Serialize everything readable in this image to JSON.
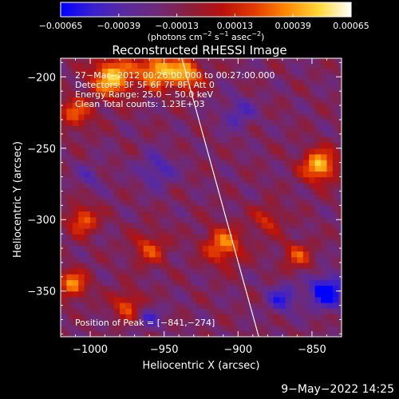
{
  "chart_data": {
    "type": "heatmap",
    "title": "Reconstructed RHESSI Image",
    "xlabel": "Heliocentric X (arcsec)",
    "ylabel": "Heliocentric Y (arcsec)",
    "xlim": [
      -1020,
      -830
    ],
    "ylim": [
      -382,
      -187
    ],
    "x_ticks": [
      {
        "value": -1000,
        "label": "−1000"
      },
      {
        "value": -950,
        "label": "−950"
      },
      {
        "value": -900,
        "label": "−900"
      },
      {
        "value": -850,
        "label": "−850"
      }
    ],
    "y_ticks": [
      {
        "value": -200,
        "label": "−200"
      },
      {
        "value": -250,
        "label": "−250"
      },
      {
        "value": -300,
        "label": "−300"
      },
      {
        "value": -350,
        "label": "−350"
      }
    ],
    "colorbar": {
      "min": -0.00065,
      "max": 0.00065,
      "tick_values": [
        -0.00065,
        -0.00039,
        -0.00013,
        0.00013,
        0.00039,
        0.00065
      ],
      "tick_labels": [
        "−0.00065",
        "−0.00039",
        "−0.00013",
        "0.00013",
        "0.00039",
        "0.00065"
      ],
      "label_main": "(photons cm",
      "label_exp1": "−2",
      "label_mid1": " s",
      "label_exp2": "−1",
      "label_mid2": " asec",
      "label_exp3": "−2",
      "label_end": ")",
      "colors": [
        "#0000ff",
        "#3a1fd0",
        "#5a2a9c",
        "#6e2a78",
        "#8a1f3c",
        "#b8100c",
        "#e23a00",
        "#ff8a00",
        "#ffd83a",
        "#ffffff"
      ]
    },
    "info_lines": [
      "27−Mar−2012 00:26:00.000 to 00:27:00.000",
      "Detectors: 3F 5F 6F 7F 8F, Att 0",
      "Energy Range: 25.0 − 50.0 keV",
      "Clean     Total counts: 1.23E+03"
    ],
    "peak_label": "Position of Peak = [−841,−274]",
    "limb_line": [
      [
        -938,
        -187
      ],
      [
        -886,
        -382
      ]
    ],
    "hotspots": [
      {
        "x": -985,
        "y": -200,
        "amp": 0.00065,
        "sigma": 10
      },
      {
        "x": -955,
        "y": -195,
        "amp": 0.0006,
        "sigma": 9
      },
      {
        "x": -935,
        "y": -198,
        "amp": 0.00055,
        "sigma": 8
      },
      {
        "x": -1010,
        "y": -225,
        "amp": 0.0004,
        "sigma": 8
      },
      {
        "x": -845,
        "y": -262,
        "amp": 0.00065,
        "sigma": 8
      },
      {
        "x": -910,
        "y": -318,
        "amp": 0.0005,
        "sigma": 9
      },
      {
        "x": -1005,
        "y": -300,
        "amp": 0.00045,
        "sigma": 7
      },
      {
        "x": -1012,
        "y": -345,
        "amp": 0.0005,
        "sigma": 7
      },
      {
        "x": -960,
        "y": -320,
        "amp": 0.00035,
        "sigma": 8
      },
      {
        "x": -880,
        "y": -300,
        "amp": 0.0003,
        "sigma": 7
      },
      {
        "x": -860,
        "y": -325,
        "amp": 0.00035,
        "sigma": 7
      },
      {
        "x": -975,
        "y": -360,
        "amp": 0.0004,
        "sigma": 7
      }
    ],
    "coldspots": [
      {
        "x": -840,
        "y": -350,
        "amp": 0.0006,
        "sigma": 8
      },
      {
        "x": -870,
        "y": -355,
        "amp": 0.00035,
        "sigma": 7
      },
      {
        "x": -955,
        "y": -265,
        "amp": 0.0003,
        "sigma": 8
      },
      {
        "x": -900,
        "y": -225,
        "amp": 0.00025,
        "sigma": 8
      },
      {
        "x": -960,
        "y": -368,
        "amp": 0.00025,
        "sigma": 6
      },
      {
        "x": -1000,
        "y": -270,
        "amp": 0.0002,
        "sigma": 6
      }
    ],
    "grid": false
  },
  "footer": {
    "date": "9−May−2022 14:25"
  }
}
